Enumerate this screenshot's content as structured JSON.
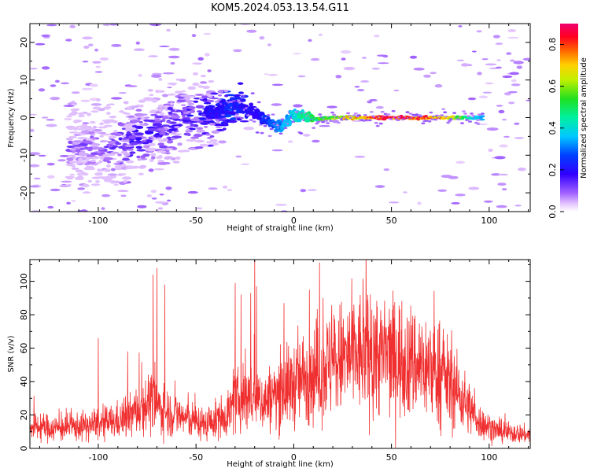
{
  "title": "KOM5.2024.053.13.54.G11",
  "chart_data": [
    {
      "type": "heatmap",
      "xlabel": "Height of straight line (km)",
      "ylabel": "Frequency (Hz)",
      "xlim": [
        -135,
        121
      ],
      "ylim": [
        -25,
        25
      ],
      "xticks": [
        -100,
        -50,
        0,
        50,
        100
      ],
      "yticks": [
        -20,
        -10,
        0,
        10,
        20
      ],
      "colorbar": {
        "label": "Normalized spectral amplitude",
        "range": [
          0,
          0.9
        ],
        "ticks": [
          0.0,
          0.2,
          0.4,
          0.6,
          0.8
        ]
      },
      "ridge": {
        "x": [
          -100,
          -85,
          -70,
          -55,
          -45,
          -38,
          -32,
          -25,
          -18,
          -10,
          -5,
          0,
          5,
          10,
          20,
          40,
          60,
          80,
          95
        ],
        "y": [
          -8,
          -7,
          -3,
          0,
          1,
          2,
          3,
          2.5,
          1,
          -2,
          -2,
          1,
          0.5,
          -0.5,
          0,
          0,
          0,
          0,
          0
        ],
        "amplitude": [
          0.1,
          0.15,
          0.15,
          0.15,
          0.2,
          0.2,
          0.25,
          0.2,
          0.2,
          0.3,
          0.35,
          0.4,
          0.45,
          0.5,
          0.6,
          0.8,
          0.85,
          0.7,
          0.35
        ]
      }
    },
    {
      "type": "line",
      "xlabel": "Height of straight line (km)",
      "ylabel": "SNR (v/v)",
      "xlim": [
        -135,
        121
      ],
      "ylim": [
        0,
        113
      ],
      "xticks": [
        -100,
        -50,
        0,
        50,
        100
      ],
      "yticks": [
        0,
        20,
        40,
        60,
        80,
        100
      ],
      "color": "#f03030",
      "envelope": {
        "x": [
          -135,
          -120,
          -100,
          -85,
          -75,
          -65,
          -55,
          -45,
          -35,
          -25,
          -15,
          -5,
          5,
          15,
          30,
          45,
          55,
          65,
          75,
          85,
          95,
          105,
          115,
          121
        ],
        "y": [
          13,
          12,
          14,
          18,
          28,
          22,
          18,
          14,
          20,
          32,
          28,
          35,
          42,
          48,
          56,
          56,
          54,
          50,
          45,
          32,
          16,
          10,
          9,
          8
        ]
      },
      "peaks": {
        "x": [
          -100,
          -85,
          -72,
          -70,
          -66,
          -30,
          -27,
          -22,
          -20,
          -19,
          -5,
          8,
          15,
          40
        ],
        "y": [
          66,
          58,
          104,
          108,
          98,
          99,
          92,
          93,
          113,
          97,
          87,
          95,
          90,
          83
        ]
      }
    }
  ]
}
